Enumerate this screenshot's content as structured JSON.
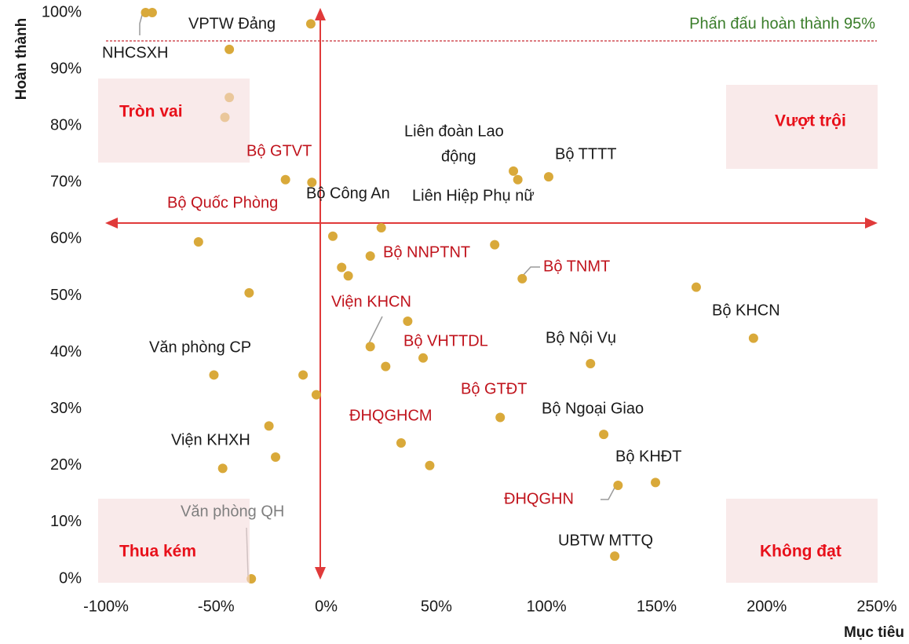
{
  "chart_data": {
    "type": "scatter",
    "x_label": "Mục tiêu",
    "y_label": "Hoàn thành",
    "xlim": [
      -100,
      250
    ],
    "ylim": [
      0,
      100
    ],
    "xticks": [
      {
        "value": -100,
        "label": "-100%"
      },
      {
        "value": -50,
        "label": "-50%"
      },
      {
        "value": 0,
        "label": "0%"
      },
      {
        "value": 50,
        "label": "50%"
      },
      {
        "value": 100,
        "label": "100%"
      },
      {
        "value": 150,
        "label": "150%"
      },
      {
        "value": 200,
        "label": "200%"
      },
      {
        "value": 250,
        "label": "250%"
      }
    ],
    "yticks": [
      {
        "value": 0,
        "label": "0%"
      },
      {
        "value": 10,
        "label": "10%"
      },
      {
        "value": 20,
        "label": "20%"
      },
      {
        "value": 30,
        "label": "30%"
      },
      {
        "value": 40,
        "label": "40%"
      },
      {
        "value": 50,
        "label": "50%"
      },
      {
        "value": 60,
        "label": "60%"
      },
      {
        "value": 70,
        "label": "70%"
      },
      {
        "value": 80,
        "label": "80%"
      },
      {
        "value": 90,
        "label": "90%"
      },
      {
        "value": 100,
        "label": "100%"
      }
    ],
    "color": "#d9a93a",
    "x": [
      -82,
      -79,
      -7,
      -44,
      -44,
      -46,
      -18.5,
      -6.5,
      85,
      87,
      101,
      25,
      3,
      -58,
      76.5,
      20,
      7,
      10,
      89,
      168,
      -35,
      37,
      194,
      20,
      44,
      120,
      27,
      -51,
      -10.5,
      -4.5,
      79,
      -26,
      126,
      34,
      -23,
      47,
      -47,
      149.5,
      132.5,
      131,
      -34
    ],
    "y": [
      100,
      100,
      98,
      93.5,
      85,
      81.5,
      70.5,
      70,
      72,
      70.5,
      71,
      62,
      60.5,
      59.5,
      59,
      57,
      55,
      53.5,
      53,
      51.5,
      50.5,
      45.5,
      42.5,
      41,
      39,
      38,
      37.5,
      36,
      36,
      32.5,
      28.5,
      27,
      25.5,
      24,
      21.5,
      20,
      19.5,
      17,
      16.5,
      4,
      0
    ],
    "target": 95,
    "target_label": "Phấn đấu hoàn thành 95%",
    "target_color": "#c0131c",
    "annotations": [
      {
        "lines": [
          "VPTW Đảng"
        ],
        "color": "#1a1a1a"
      },
      {
        "lines": [
          "NHCSXH"
        ],
        "color": "#1a1a1a"
      },
      {
        "lines": [
          "Bộ GTVT"
        ],
        "color": "#c0131c"
      },
      {
        "lines": [
          "Liên đoàn Lao",
          "động"
        ],
        "color": "#1a1a1a"
      },
      {
        "lines": [
          "Bộ TTTT"
        ],
        "color": "#1a1a1a"
      },
      {
        "lines": [
          "Bộ Công An"
        ],
        "color": "#1a1a1a"
      },
      {
        "lines": [
          "Liên Hiệp Phụ nữ"
        ],
        "color": "#1a1a1a"
      },
      {
        "lines": [
          "Bộ Quốc Phòng"
        ],
        "color": "#c0131c"
      },
      {
        "lines": [
          "Bộ NNPTNT"
        ],
        "color": "#c0131c"
      },
      {
        "lines": [
          "Bộ TNMT"
        ],
        "color": "#c0131c"
      },
      {
        "lines": [
          "Viện KHCN"
        ],
        "color": "#c0131c"
      },
      {
        "lines": [
          "Bộ KHCN"
        ],
        "color": "#1a1a1a"
      },
      {
        "lines": [
          "Bộ VHTTDL"
        ],
        "color": "#c0131c"
      },
      {
        "lines": [
          "Bộ Nội Vụ"
        ],
        "color": "#1a1a1a"
      },
      {
        "lines": [
          "Văn phòng CP"
        ],
        "color": "#1a1a1a"
      },
      {
        "lines": [
          "Bộ GTĐT"
        ],
        "color": "#c0131c"
      },
      {
        "lines": [
          "ĐHQGHCM"
        ],
        "color": "#c0131c"
      },
      {
        "lines": [
          "Bộ Ngoại Giao"
        ],
        "color": "#1a1a1a"
      },
      {
        "lines": [
          "Viện KHXH"
        ],
        "color": "#1a1a1a"
      },
      {
        "lines": [
          "Bộ KHĐT"
        ],
        "color": "#1a1a1a"
      },
      {
        "lines": [
          "ĐHQGHN"
        ],
        "color": "#c0131c"
      },
      {
        "lines": [
          "Văn phòng QH"
        ],
        "color": "#7f7f7f"
      },
      {
        "lines": [
          "UBTW MTTQ"
        ],
        "color": "#1a1a1a"
      }
    ],
    "quadrants": [
      "Tròn vai",
      "Vượt trội",
      "Thua kém",
      "Không đạt"
    ],
    "quadrant_color": "#e8101a"
  }
}
